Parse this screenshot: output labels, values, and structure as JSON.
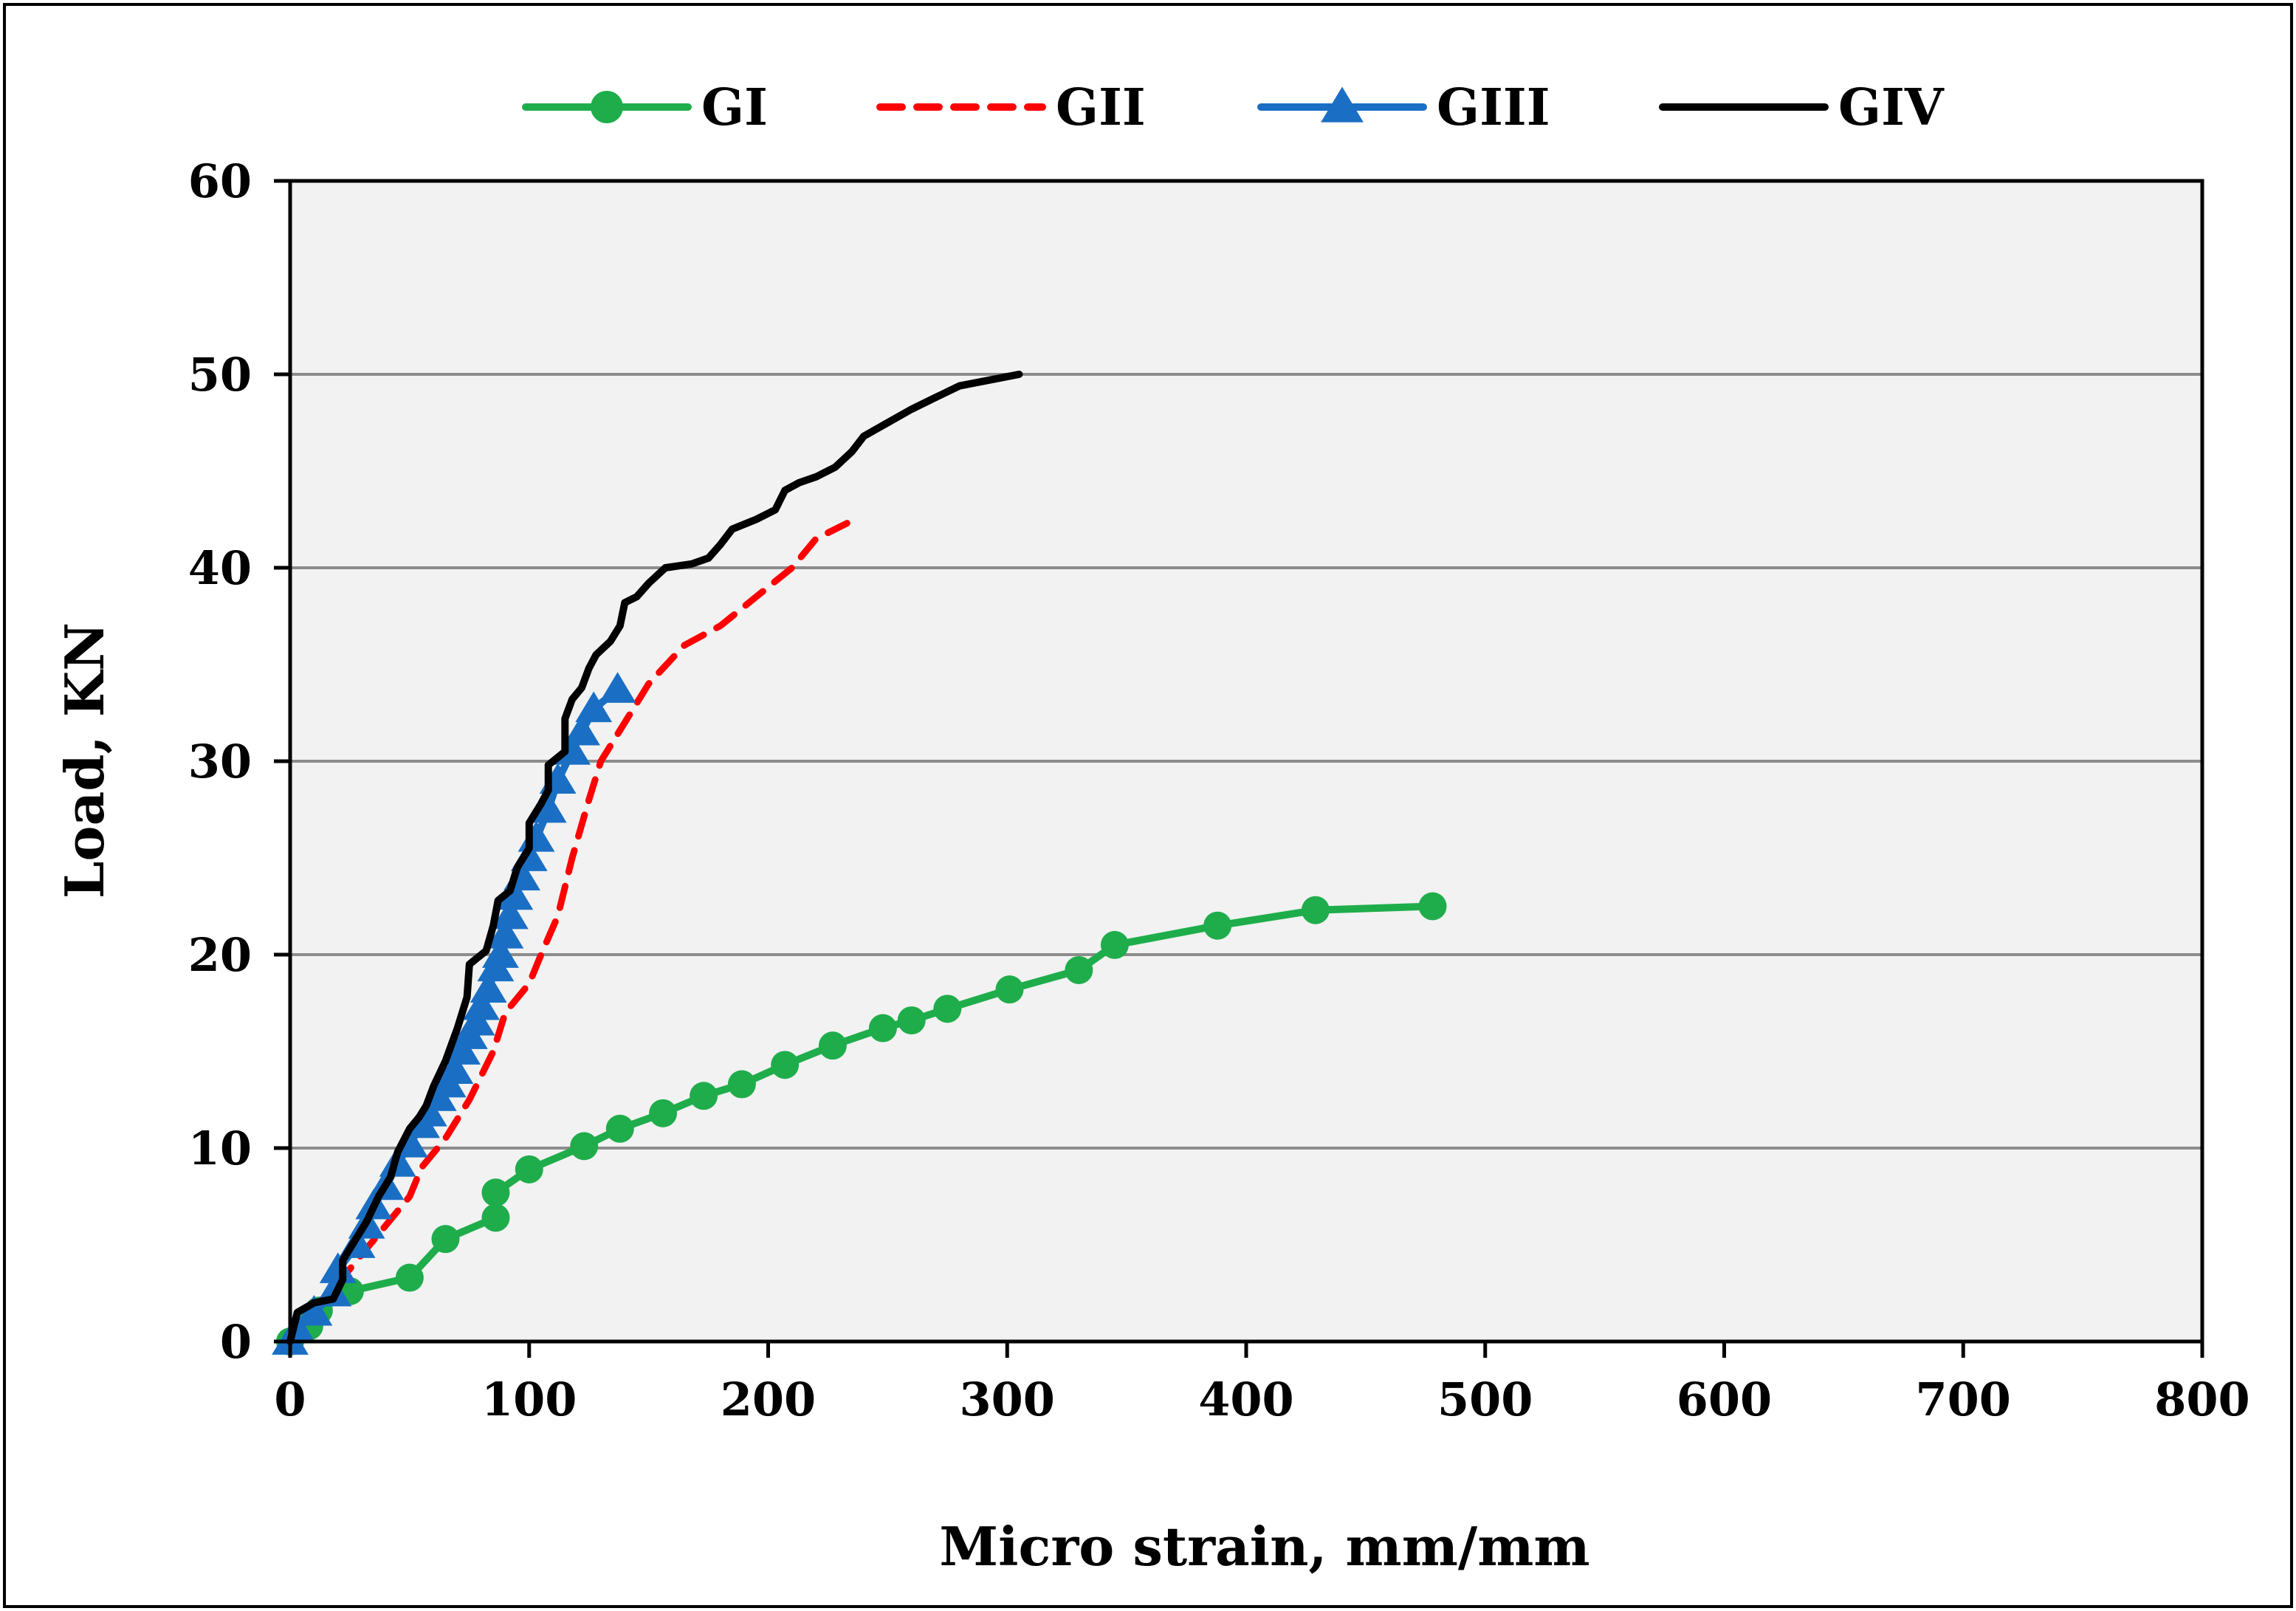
{
  "chart_data": {
    "type": "line",
    "title": "",
    "xlabel": "Micro strain, mm/mm",
    "ylabel": "Load, KN",
    "xlim": [
      0,
      800
    ],
    "ylim": [
      0,
      60
    ],
    "x_ticks": [
      "0",
      "100",
      "200",
      "300",
      "400",
      "500",
      "600",
      "700",
      "800"
    ],
    "y_ticks": [
      "0",
      "10",
      "20",
      "30",
      "40",
      "50",
      "60"
    ],
    "grid": "horizontal",
    "legend_position": "top",
    "colors": {
      "GI": "#1fad4b",
      "GII": "#ff0000",
      "GIII": "#1a6fc4",
      "GIV": "#000000",
      "plot_background": "#f2f2f2",
      "gridline": "#8c8c8c"
    },
    "series": [
      {
        "name": "GI",
        "line": "solid",
        "marker": "circle",
        "points": [
          [
            0,
            0
          ],
          [
            8,
            0.8
          ],
          [
            12,
            1.6
          ],
          [
            25,
            2.6
          ],
          [
            50,
            3.3
          ],
          [
            65,
            5.3
          ],
          [
            86,
            6.4
          ],
          [
            86,
            7.7
          ],
          [
            100,
            8.9
          ],
          [
            123,
            10.1
          ],
          [
            138,
            11.0
          ],
          [
            156,
            11.8
          ],
          [
            173,
            12.7
          ],
          [
            189,
            13.3
          ],
          [
            207,
            14.3
          ],
          [
            227,
            15.3
          ],
          [
            248,
            16.2
          ],
          [
            260,
            16.6
          ],
          [
            275,
            17.2
          ],
          [
            301,
            18.2
          ],
          [
            330,
            19.2
          ],
          [
            345,
            20.5
          ],
          [
            388,
            21.5
          ],
          [
            429,
            22.3
          ],
          [
            478,
            22.5
          ]
        ]
      },
      {
        "name": "GII",
        "line": "dashed",
        "marker": "none",
        "points": [
          [
            0,
            0
          ],
          [
            5,
            1
          ],
          [
            12,
            2
          ],
          [
            20,
            3
          ],
          [
            30,
            4.5
          ],
          [
            40,
            6
          ],
          [
            50,
            7.5
          ],
          [
            55,
            9
          ],
          [
            65,
            10.5
          ],
          [
            75,
            12.5
          ],
          [
            85,
            15
          ],
          [
            90,
            17
          ],
          [
            100,
            18.5
          ],
          [
            105,
            20
          ],
          [
            112,
            22
          ],
          [
            118,
            25
          ],
          [
            125,
            28
          ],
          [
            130,
            30
          ],
          [
            140,
            32
          ],
          [
            150,
            34
          ],
          [
            165,
            36
          ],
          [
            180,
            37
          ],
          [
            195,
            38.5
          ],
          [
            210,
            40
          ],
          [
            220,
            41.5
          ],
          [
            233,
            42.3
          ]
        ]
      },
      {
        "name": "GIII",
        "line": "solid",
        "marker": "triangle",
        "points": [
          [
            0,
            0
          ],
          [
            3,
            0.6
          ],
          [
            10,
            1.5
          ],
          [
            18,
            2.5
          ],
          [
            20,
            3.7
          ],
          [
            28,
            5
          ],
          [
            32,
            6
          ],
          [
            35,
            7
          ],
          [
            40,
            8
          ],
          [
            45,
            9.2
          ],
          [
            50,
            10.2
          ],
          [
            55,
            11.2
          ],
          [
            58,
            11.8
          ],
          [
            62,
            12.6
          ],
          [
            66,
            13.3
          ],
          [
            69,
            14
          ],
          [
            72,
            15
          ],
          [
            75,
            15.8
          ],
          [
            78,
            16.5
          ],
          [
            80,
            17.3
          ],
          [
            83,
            18.2
          ],
          [
            86,
            19.3
          ],
          [
            88,
            20
          ],
          [
            90,
            21
          ],
          [
            92,
            22
          ],
          [
            94,
            23
          ],
          [
            97,
            24
          ],
          [
            100,
            25
          ],
          [
            103,
            26
          ],
          [
            108,
            27.5
          ],
          [
            112,
            29
          ],
          [
            118,
            30.5
          ],
          [
            122,
            31.5
          ],
          [
            127,
            32.7
          ],
          [
            137,
            33.7
          ]
        ]
      },
      {
        "name": "GIV",
        "line": "solid",
        "marker": "none",
        "points": [
          [
            0,
            0
          ],
          [
            3,
            1.5
          ],
          [
            10,
            2
          ],
          [
            18,
            2.2
          ],
          [
            22,
            3.2
          ],
          [
            22,
            4.2
          ],
          [
            27,
            5.2
          ],
          [
            32,
            6.2
          ],
          [
            37,
            7.5
          ],
          [
            42,
            8.5
          ],
          [
            45,
            9.8
          ],
          [
            50,
            11
          ],
          [
            54,
            11.6
          ],
          [
            57,
            12.2
          ],
          [
            60,
            13.2
          ],
          [
            65,
            14.5
          ],
          [
            70,
            16.2
          ],
          [
            74,
            17.8
          ],
          [
            75,
            19.5
          ],
          [
            78,
            19.8
          ],
          [
            82,
            20.2
          ],
          [
            85,
            21.5
          ],
          [
            87,
            22.8
          ],
          [
            92,
            23.3
          ],
          [
            95,
            24.5
          ],
          [
            100,
            25.5
          ],
          [
            100,
            26.8
          ],
          [
            105,
            27.8
          ],
          [
            108,
            28.5
          ],
          [
            108,
            29.8
          ],
          [
            115,
            30.5
          ],
          [
            115,
            32.2
          ],
          [
            118,
            33.2
          ],
          [
            122,
            33.8
          ],
          [
            125,
            34.8
          ],
          [
            128,
            35.5
          ],
          [
            134,
            36.2
          ],
          [
            138,
            37
          ],
          [
            140,
            38.2
          ],
          [
            145,
            38.5
          ],
          [
            150,
            39.2
          ],
          [
            157,
            40
          ],
          [
            168,
            40.2
          ],
          [
            175,
            40.5
          ],
          [
            180,
            41.2
          ],
          [
            185,
            42
          ],
          [
            195,
            42.5
          ],
          [
            203,
            43
          ],
          [
            207,
            44
          ],
          [
            213,
            44.4
          ],
          [
            220,
            44.7
          ],
          [
            228,
            45.2
          ],
          [
            235,
            46
          ],
          [
            240,
            46.8
          ],
          [
            250,
            47.5
          ],
          [
            260,
            48.2
          ],
          [
            270,
            48.8
          ],
          [
            280,
            49.4
          ],
          [
            305,
            50
          ]
        ]
      }
    ]
  }
}
